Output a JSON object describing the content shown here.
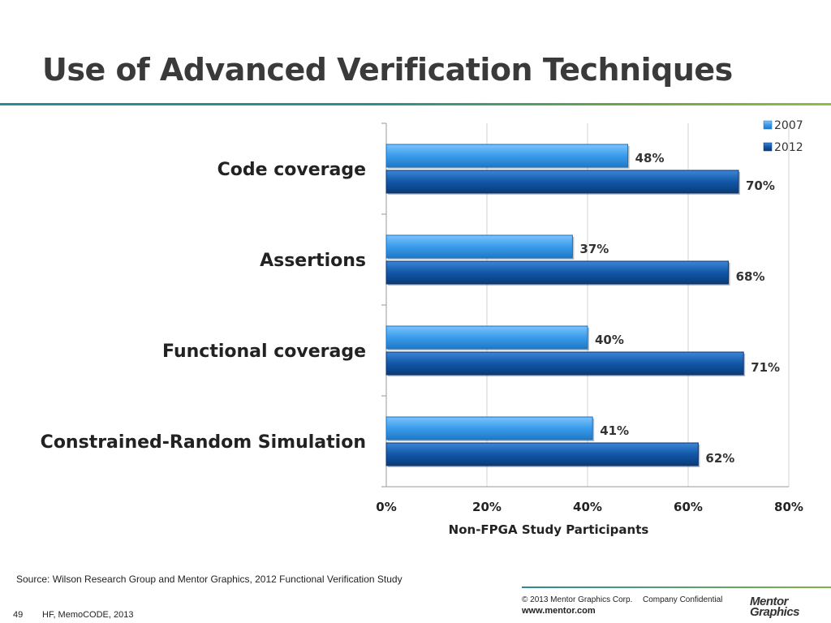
{
  "slide": {
    "title": "Use of Advanced Verification Techniques",
    "source": "Source:  Wilson Research Group and Mentor Graphics, 2012 Functional Verification Study",
    "copyright": "© 2013 Mentor Graphics Corp.",
    "confidential": "Company Confidential",
    "url": "www.mentor.com",
    "logo": [
      "Mentor",
      "Graphics"
    ],
    "page_number": "49",
    "footer_note": "HF, MemoCODE, 2013"
  },
  "chart_data": {
    "type": "bar",
    "orientation": "horizontal",
    "categories": [
      "Code coverage",
      "Assertions",
      "Functional coverage",
      "Constrained-Random Simulation"
    ],
    "series": [
      {
        "name": "2007",
        "values": [
          48,
          37,
          40,
          41
        ],
        "labels": [
          "48%",
          "37%",
          "40%",
          "41%"
        ],
        "color": "#3a9bea"
      },
      {
        "name": "2012",
        "values": [
          70,
          68,
          71,
          62
        ],
        "labels": [
          "70%",
          "68%",
          "71%",
          "62%"
        ],
        "color": "#1257a8"
      }
    ],
    "xlabel": "Non-FPGA Study Participants",
    "xlim": [
      0,
      80
    ],
    "xticks": [
      "0%",
      "20%",
      "40%",
      "60%",
      "80%"
    ],
    "xtick_values": [
      0,
      20,
      40,
      60,
      80
    ],
    "grid": true,
    "legend_position": "top-right"
  }
}
